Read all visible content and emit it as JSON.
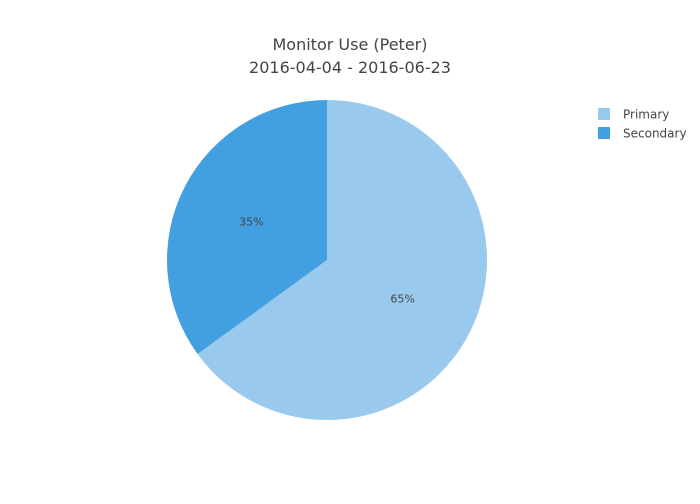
{
  "chart_data": {
    "type": "pie",
    "title": "Monitor Use (Peter)",
    "subtitle": "2016-04-04 - 2016-06-23",
    "categories": [
      "Primary",
      "Secondary"
    ],
    "values": [
      65,
      35
    ],
    "value_labels": [
      "65%",
      "35%"
    ],
    "colors": [
      "#99caee",
      "#429fe0"
    ],
    "direction": "clockwise",
    "start_angle_degrees": 90,
    "legend_placement": "top-right"
  }
}
